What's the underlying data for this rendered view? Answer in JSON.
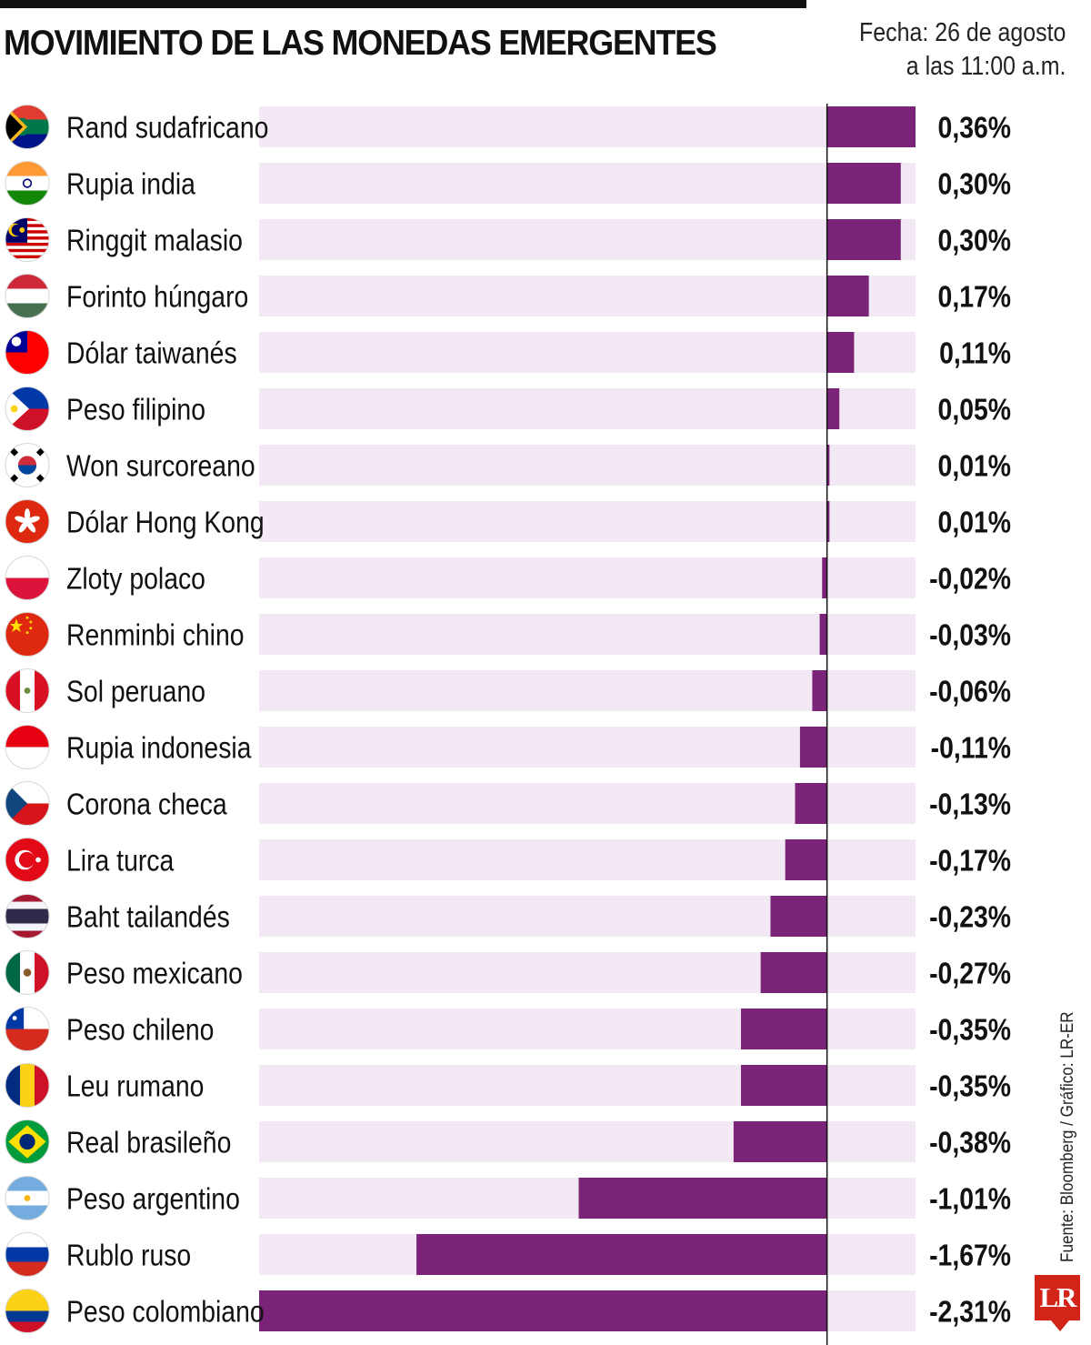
{
  "header": {
    "title": "MOVIMIENTO DE LAS MONEDAS EMERGENTES",
    "date_line1": "Fecha: 26 de agosto",
    "date_line2": "a las 11:00 a.m."
  },
  "source": "Fuente: Bloomberg / Gráfico: LR-ER",
  "logo_text": "LR",
  "colors": {
    "bar": "#7b2379",
    "track": "#f3e9f5",
    "axis": "#111111"
  },
  "chart_data": {
    "type": "bar",
    "orientation": "horizontal",
    "title": "MOVIMIENTO DE LAS MONEDAS EMERGENTES",
    "xlim": [
      -2.31,
      0.36
    ],
    "unit": "%",
    "items": [
      {
        "name": "Rand sudafricano",
        "value": 0.36,
        "label": "0,36%",
        "flag": "south-africa-flag"
      },
      {
        "name": "Rupia india",
        "value": 0.3,
        "label": "0,30%",
        "flag": "india-flag"
      },
      {
        "name": "Ringgit malasio",
        "value": 0.3,
        "label": "0,30%",
        "flag": "malaysia-flag"
      },
      {
        "name": "Forinto húngaro",
        "value": 0.17,
        "label": "0,17%",
        "flag": "hungary-flag"
      },
      {
        "name": "Dólar taiwanés",
        "value": 0.11,
        "label": "0,11%",
        "flag": "taiwan-flag"
      },
      {
        "name": "Peso filipino",
        "value": 0.05,
        "label": "0,05%",
        "flag": "philippines-flag"
      },
      {
        "name": "Won surcoreano",
        "value": 0.01,
        "label": "0,01%",
        "flag": "south-korea-flag"
      },
      {
        "name": "Dólar Hong Kong",
        "value": 0.01,
        "label": "0,01%",
        "flag": "hong-kong-flag"
      },
      {
        "name": "Zloty polaco",
        "value": -0.02,
        "label": "-0,02%",
        "flag": "poland-flag"
      },
      {
        "name": "Renminbi chino",
        "value": -0.03,
        "label": "-0,03%",
        "flag": "china-flag"
      },
      {
        "name": "Sol peruano",
        "value": -0.06,
        "label": "-0,06%",
        "flag": "peru-flag"
      },
      {
        "name": "Rupia indonesia",
        "value": -0.11,
        "label": "-0,11%",
        "flag": "indonesia-flag"
      },
      {
        "name": "Corona checa",
        "value": -0.13,
        "label": "-0,13%",
        "flag": "czech-flag"
      },
      {
        "name": "Lira turca",
        "value": -0.17,
        "label": "-0,17%",
        "flag": "turkey-flag"
      },
      {
        "name": "Baht tailandés",
        "value": -0.23,
        "label": "-0,23%",
        "flag": "thailand-flag"
      },
      {
        "name": "Peso mexicano",
        "value": -0.27,
        "label": "-0,27%",
        "flag": "mexico-flag"
      },
      {
        "name": "Peso chileno",
        "value": -0.35,
        "label": "-0,35%",
        "flag": "chile-flag"
      },
      {
        "name": "Leu rumano",
        "value": -0.35,
        "label": "-0,35%",
        "flag": "romania-flag"
      },
      {
        "name": "Real brasileño",
        "value": -0.38,
        "label": "-0,38%",
        "flag": "brazil-flag"
      },
      {
        "name": "Peso argentino",
        "value": -1.01,
        "label": "-1,01%",
        "flag": "argentina-flag"
      },
      {
        "name": "Rublo ruso",
        "value": -1.67,
        "label": "-1,67%",
        "flag": "russia-flag"
      },
      {
        "name": "Peso colombiano",
        "value": -2.31,
        "label": "-2,31%",
        "flag": "colombia-flag"
      }
    ]
  }
}
